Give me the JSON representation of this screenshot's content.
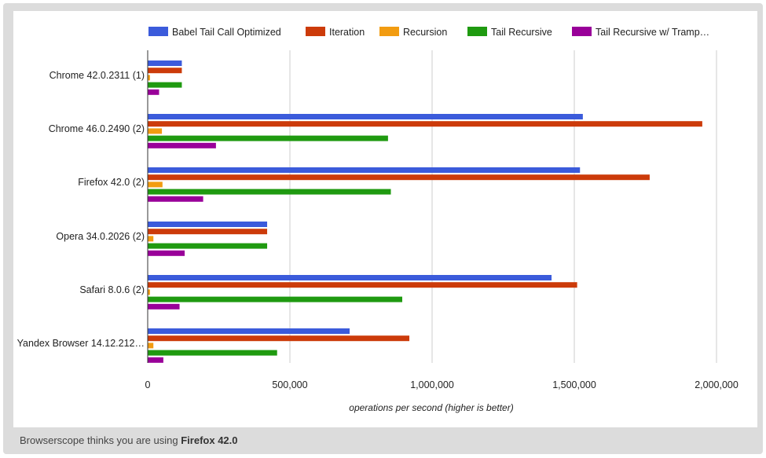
{
  "chart_data": {
    "type": "bar",
    "orientation": "horizontal",
    "categories": [
      "Chrome 42.0.2311 (1)",
      "Chrome 46.0.2490 (2)",
      "Firefox 42.0 (2)",
      "Opera 34.0.2026 (2)",
      "Safari 8.0.6 (2)",
      "Yandex Browser 14.12.212…"
    ],
    "series": [
      {
        "name": "Babel Tail Call Optimized",
        "color": "#3b5bdb",
        "values": [
          120000,
          1530000,
          1520000,
          420000,
          1420000,
          710000
        ]
      },
      {
        "name": "Iteration",
        "color": "#cc3b0a",
        "values": [
          120000,
          1950000,
          1765000,
          420000,
          1510000,
          920000
        ]
      },
      {
        "name": "Recursion",
        "color": "#f29c11",
        "values": [
          8000,
          50000,
          52000,
          20000,
          8000,
          20000
        ]
      },
      {
        "name": "Tail Recursive",
        "color": "#1f9a10",
        "values": [
          120000,
          845000,
          855000,
          420000,
          895000,
          455000
        ]
      },
      {
        "name": "Tail Recursive w/ Tramp…",
        "color": "#990099",
        "values": [
          40000,
          240000,
          195000,
          130000,
          112000,
          55000
        ]
      }
    ],
    "xlim": [
      0,
      2100000
    ],
    "xticks": [
      0,
      500000,
      1000000,
      1500000,
      2000000
    ],
    "xtick_labels": [
      "0",
      "500,000",
      "1,000,000",
      "1,500,000",
      "2,000,000"
    ],
    "xlabel": "operations per second (higher is better)",
    "ylabel": "",
    "grid": true,
    "legend_position": "top"
  },
  "footer": {
    "prefix": "Browserscope thinks you are using",
    "browser": "Firefox 42.0"
  }
}
